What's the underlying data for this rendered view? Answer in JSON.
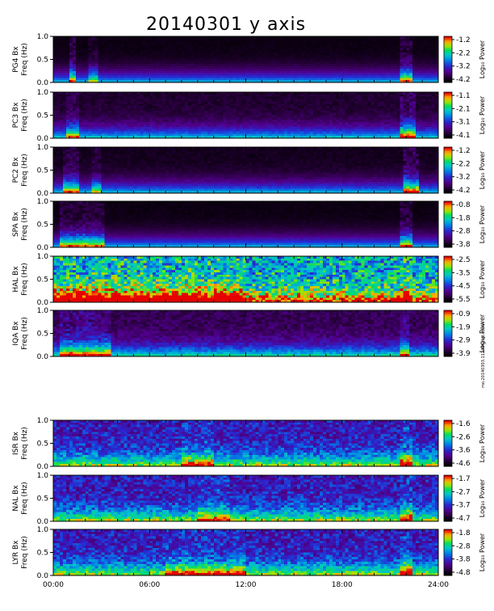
{
  "chart_data": {
    "type": "heatmap",
    "title": "20140301 y axis",
    "x_ticks": [
      "00:00",
      "06:00",
      "12:00",
      "18:00",
      "24:00"
    ],
    "xlim": [
      0,
      24
    ],
    "colorbar_label": "Log₁₀ Power",
    "panels": [
      {
        "name": "PG4 Bx",
        "ylabel": "Freq (Hz)",
        "y_ticks": [
          "0.0",
          "0.5",
          "1.0"
        ],
        "cbar_ticks": [
          "-1.2",
          "-2.2",
          "-3.2",
          "-4.2"
        ],
        "clim": [
          -4.2,
          -1.2
        ],
        "activity": [
          [
            0.9,
            1.4,
            0.9
          ],
          [
            2.3,
            2.7,
            0.6
          ],
          [
            21.6,
            22.4,
            0.9
          ]
        ],
        "bg": 0.03
      },
      {
        "name": "PC3 Bx",
        "ylabel": "Freq (Hz)",
        "y_ticks": [
          "0.0",
          "0.5",
          "1.0"
        ],
        "cbar_ticks": [
          "-1.1",
          "-2.1",
          "-3.1",
          "-4.1"
        ],
        "clim": [
          -4.1,
          -1.1
        ],
        "activity": [
          [
            0.8,
            1.6,
            0.7
          ],
          [
            21.6,
            22.6,
            1.0
          ]
        ],
        "bg": 0.08
      },
      {
        "name": "PC2 Bx",
        "ylabel": "Freq (Hz)",
        "y_ticks": [
          "0.0",
          "0.5",
          "1.0"
        ],
        "cbar_ticks": [
          "-1.2",
          "-2.2",
          "-3.2",
          "-4.2"
        ],
        "clim": [
          -4.2,
          -1.2
        ],
        "activity": [
          [
            0.6,
            1.5,
            0.8
          ],
          [
            2.5,
            2.9,
            0.6
          ],
          [
            21.8,
            22.9,
            1.0
          ]
        ],
        "bg": 0.05
      },
      {
        "name": "SPA Bx",
        "ylabel": "Freq (Hz)",
        "y_ticks": [
          "0.0",
          "0.5",
          "1.0"
        ],
        "cbar_ticks": [
          "-0.8",
          "-1.8",
          "-2.8",
          "-3.8"
        ],
        "clim": [
          -3.8,
          -0.8
        ],
        "activity": [
          [
            0.4,
            3.2,
            0.8
          ],
          [
            21.6,
            22.4,
            0.9
          ]
        ],
        "bg": 0.03
      },
      {
        "name": "HAL Bx",
        "ylabel": "Freq (Hz)",
        "y_ticks": [
          "0.0",
          "0.5",
          "1.0"
        ],
        "cbar_ticks": [
          "-2.5",
          "-3.5",
          "-4.5",
          "-5.5"
        ],
        "clim": [
          -5.5,
          -2.5
        ],
        "activity": [
          [
            0.0,
            12.0,
            0.6
          ],
          [
            21.6,
            22.2,
            0.7
          ]
        ],
        "bg": 0.55
      },
      {
        "name": "IQA Bx",
        "ylabel": "Freq (Hz)",
        "y_ticks": [
          "0.0",
          "0.5",
          "1.0"
        ],
        "cbar_ticks": [
          "-0.9",
          "-1.9",
          "-2.9",
          "-3.9"
        ],
        "clim": [
          -3.9,
          -0.9
        ],
        "activity": [
          [
            0.5,
            3.5,
            0.8
          ],
          [
            21.6,
            22.2,
            0.7
          ]
        ],
        "bg": 0.14
      },
      {
        "name": "ISR Bx",
        "ylabel": "Freq (Hz)",
        "y_ticks": [
          "0.0",
          "0.5",
          "1.0"
        ],
        "cbar_ticks": [
          "-1.6",
          "-2.6",
          "-3.6",
          "-4.6"
        ],
        "clim": [
          -4.6,
          -1.6
        ],
        "activity": [
          [
            8.0,
            10.0,
            0.5
          ],
          [
            21.6,
            22.4,
            0.8
          ]
        ],
        "bg": 0.3
      },
      {
        "name": "NAL Bx",
        "ylabel": "Freq (Hz)",
        "y_ticks": [
          "0.0",
          "0.5",
          "1.0"
        ],
        "cbar_ticks": [
          "-1.7",
          "-2.7",
          "-3.7",
          "-4.7"
        ],
        "clim": [
          -4.7,
          -1.7
        ],
        "activity": [
          [
            9.0,
            11.0,
            0.5
          ],
          [
            21.6,
            22.4,
            0.8
          ]
        ],
        "bg": 0.3
      },
      {
        "name": "LYR Bx",
        "ylabel": "Freq (Hz)",
        "y_ticks": [
          "0.0",
          "0.5",
          "1.0"
        ],
        "cbar_ticks": [
          "-1.8",
          "-2.8",
          "-3.8",
          "-4.8"
        ],
        "clim": [
          -4.8,
          -1.8
        ],
        "activity": [
          [
            7.0,
            12.0,
            0.5
          ],
          [
            21.6,
            22.4,
            0.8
          ]
        ],
        "bg": 0.3
      }
    ]
  },
  "footnote": "mo.20140303.112444.ngt.sonw"
}
